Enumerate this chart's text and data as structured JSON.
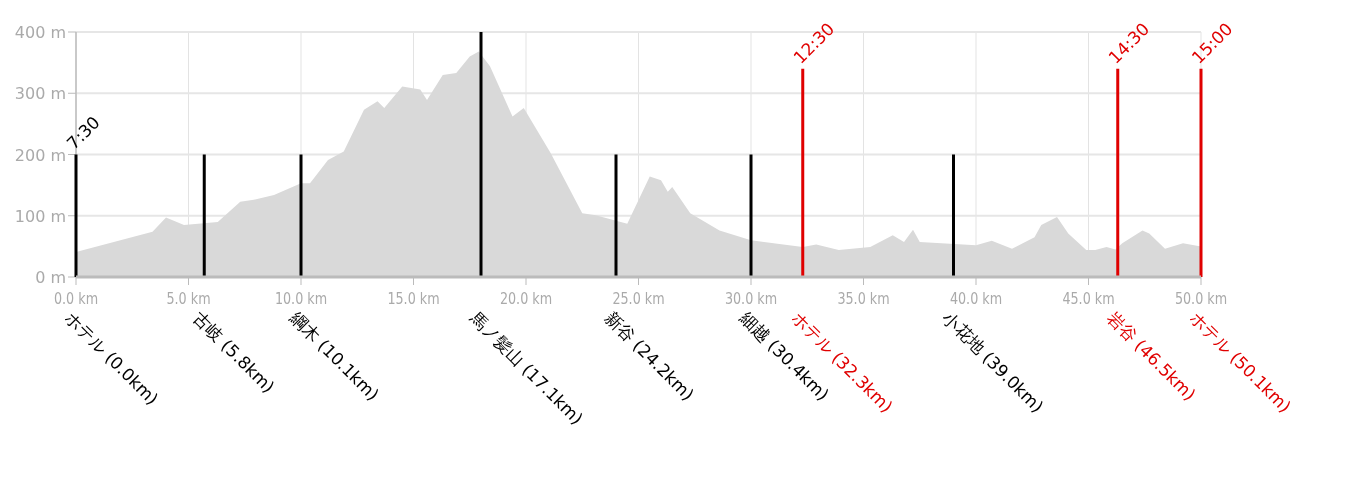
{
  "chart_data": {
    "type": "area",
    "xlim": [
      0,
      50
    ],
    "ylim": [
      0,
      400
    ],
    "xticks": [
      {
        "value": 0,
        "label": "0.0 km"
      },
      {
        "value": 5,
        "label": "5.0 km"
      },
      {
        "value": 10,
        "label": "10.0 km"
      },
      {
        "value": 15,
        "label": "15.0 km"
      },
      {
        "value": 20,
        "label": "20.0 km"
      },
      {
        "value": 25,
        "label": "25.0 km"
      },
      {
        "value": 30,
        "label": "30.0 km"
      },
      {
        "value": 35,
        "label": "35.0 km"
      },
      {
        "value": 40,
        "label": "40.0 km"
      },
      {
        "value": 45,
        "label": "45.0 km"
      },
      {
        "value": 50,
        "label": "50.0 km"
      }
    ],
    "yticks": [
      {
        "value": 0,
        "label": "0 m"
      },
      {
        "value": 100,
        "label": "100 m"
      },
      {
        "value": 200,
        "label": "200 m"
      },
      {
        "value": 300,
        "label": "300 m"
      },
      {
        "value": 400,
        "label": "400 m"
      }
    ],
    "grid": true,
    "series": [
      {
        "color": "#d9d9d9",
        "x": [
          0,
          3.4,
          4.0,
          4.8,
          6.3,
          7.3,
          7.9,
          8.8,
          10.0,
          10.4,
          11.2,
          11.9,
          12.8,
          13.4,
          13.7,
          14.5,
          15.3,
          15.6,
          16.3,
          16.9,
          17.5,
          17.9,
          18.4,
          19.4,
          19.9,
          21.1,
          22.5,
          23.1,
          24.5,
          25.5,
          26.0,
          26.3,
          26.5,
          27.3,
          28.6,
          30.0,
          32.3,
          32.9,
          33.9,
          35.3,
          36.3,
          36.8,
          37.2,
          37.5,
          40.0,
          40.7,
          41.6,
          42.6,
          42.9,
          43.6,
          44.1,
          44.9,
          45.3,
          45.8,
          46.2,
          46.5,
          47.4,
          47.7,
          48.4,
          49.2,
          50.0
        ],
        "values": [
          41,
          74,
          97,
          85,
          90,
          123,
          126,
          134,
          153,
          153,
          191,
          205,
          273,
          287,
          276,
          311,
          306,
          289,
          330,
          333,
          360,
          368,
          344,
          262,
          276,
          202,
          104,
          101,
          87,
          164,
          158,
          139,
          147,
          104,
          76,
          60,
          49,
          53,
          44,
          49,
          68,
          57,
          77,
          57,
          52,
          59,
          46,
          65,
          85,
          98,
          71,
          44,
          44,
          49,
          45,
          55,
          76,
          71,
          46,
          55,
          50
        ]
      },
      {
        "type": "bar",
        "x": [
          0,
          5.7,
          10.0,
          18.0,
          24.0,
          30.0,
          32.3,
          39.0,
          46.3,
          50.0
        ],
        "values": [
          200,
          200,
          200,
          400,
          200,
          200,
          340,
          200,
          340,
          340
        ],
        "colors": [
          "#000000",
          "#000000",
          "#000000",
          "#000000",
          "#000000",
          "#000000",
          "#e00000",
          "#000000",
          "#e00000",
          "#e00000"
        ]
      }
    ],
    "annotations": [
      {
        "text": "ホテル (0.0km)",
        "x": 0,
        "y": 0
      },
      {
        "text": "古岐 (5.8km)",
        "x": 5.7,
        "y": 0
      },
      {
        "text": "綱木 (10.1km)",
        "x": 10.0,
        "y": 0
      },
      {
        "text": "馬ノ髪山 (17.1km)",
        "x": 18.0,
        "y": 0
      },
      {
        "text": "新谷 (24.2km)",
        "x": 24.0,
        "y": 0
      },
      {
        "text": "細越 (30.4km)",
        "x": 30.0,
        "y": 0
      },
      {
        "text": "ホテル (32.3km)",
        "x": 32.3,
        "y": 0
      },
      {
        "text": "小花地 (39.0km)",
        "x": 39.0,
        "y": 0
      },
      {
        "text": "岩谷 (46.5km)",
        "x": 46.3,
        "y": 0
      },
      {
        "text": "ホテル (50.1km)",
        "x": 50.0,
        "y": 0
      },
      {
        "text": "7:30",
        "x": 0,
        "y": 200
      },
      {
        "text": "12:30",
        "x": 32.3,
        "y": 340
      },
      {
        "text": "14:30",
        "x": 46.3,
        "y": 340
      },
      {
        "text": "15:00",
        "x": 50.0,
        "y": 340
      }
    ]
  }
}
